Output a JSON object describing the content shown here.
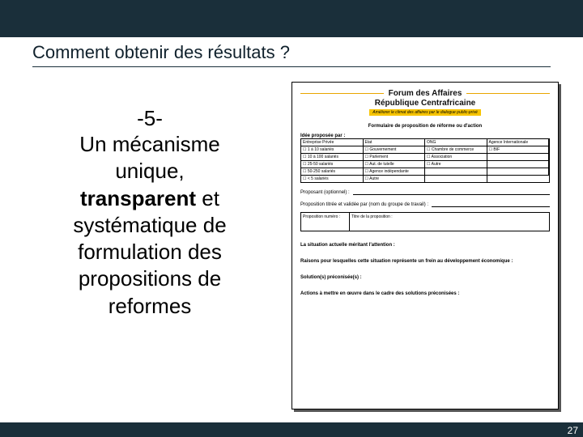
{
  "colors": {
    "bar": "#1a2f3a",
    "accent": "#e9a500",
    "tagbg": "#f7c400"
  },
  "title": "Comment obtenir des résultats ?",
  "left": {
    "num": "-5-",
    "l1": "Un mécanisme",
    "l2": "unique,",
    "l3a": "transparent",
    "l3b": " et",
    "l4": "systématique de",
    "l5": "formulation des",
    "l6": "propositions de",
    "l7": "reformes"
  },
  "form": {
    "brand1": "Forum des Affaires",
    "brand2": "République Centrafricaine",
    "tagline": "Améliorer le climat des affaires par le dialogue public-privé",
    "heading": "Formulaire de proposition de réforme ou d'action",
    "ideaBy": "Idée proposée par :",
    "cols": [
      "Entreprise Privée",
      "Etat",
      "ONG",
      "Agence Internationale"
    ],
    "rows": [
      [
        "1 à 10 salariés",
        "Gouvernement",
        "Chambre de commerce",
        "BIF"
      ],
      [
        "10 à 100 salariés",
        "Parlement",
        "Association",
        ""
      ],
      [
        "25-50 salariés",
        "Aut. de tutelle",
        "Autre",
        ""
      ],
      [
        "50-250 salariés",
        "Agence indépendante",
        "",
        ""
      ],
      [
        "< 5 salariés",
        "Autre",
        "",
        ""
      ]
    ],
    "proposant": "Proposant (optionnel) :",
    "titled": "Proposition titrée et validée par (nom du groupe de travail) :",
    "boxA": "Proposition numéro :",
    "boxB": "Titre de la proposition :",
    "sec1": "La situation actuelle méritant l'attention :",
    "sec2": "Raisons pour lesquelles cette situation représente un frein au développement économique :",
    "sec3": "Solution(s) préconisée(s) :",
    "sec4": "Actions à mettre en œuvre dans le cadre des solutions préconisées :"
  },
  "page": "27"
}
